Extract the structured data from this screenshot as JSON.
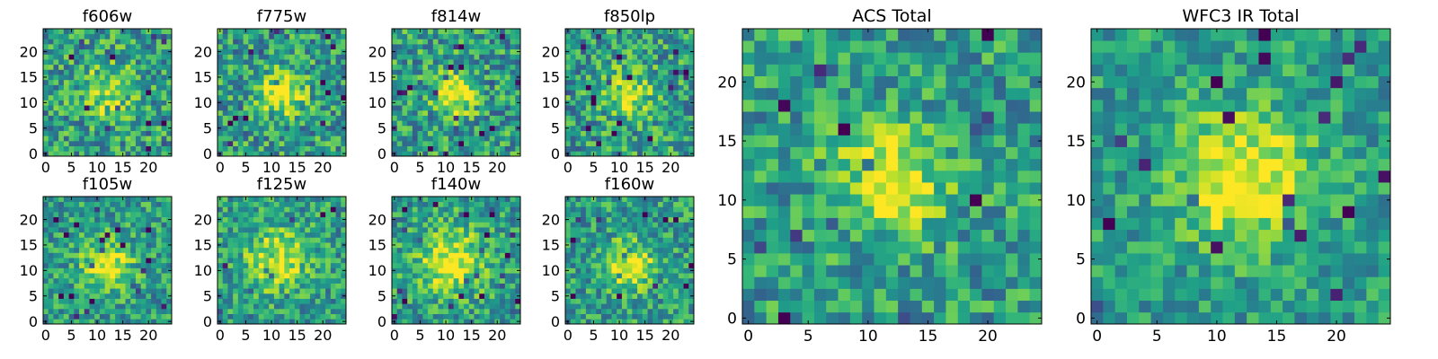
{
  "chart_data": [
    {
      "type": "heatmap",
      "title": "f606w",
      "xticks": [
        "0",
        "5",
        "10",
        "15",
        "20"
      ],
      "yticks": [
        "0",
        "5",
        "10",
        "15",
        "20"
      ],
      "xlim": [
        -0.5,
        24.5
      ],
      "ylim": [
        -0.5,
        24.5
      ],
      "grid_size": 25,
      "colormap": "viridis",
      "peak": {
        "x": 12,
        "y": 12,
        "sigma": 4.0,
        "amplitude": 0.28
      },
      "noise": 0.35,
      "seed": 11
    },
    {
      "type": "heatmap",
      "title": "f775w",
      "xticks": [
        "0",
        "5",
        "10",
        "15",
        "20"
      ],
      "yticks": [
        "0",
        "5",
        "10",
        "15",
        "20"
      ],
      "xlim": [
        -0.5,
        24.5
      ],
      "ylim": [
        -0.5,
        24.5
      ],
      "grid_size": 25,
      "colormap": "viridis",
      "peak": {
        "x": 12,
        "y": 12,
        "sigma": 2.8,
        "amplitude": 0.55
      },
      "noise": 0.35,
      "seed": 23
    },
    {
      "type": "heatmap",
      "title": "f814w",
      "xticks": [
        "0",
        "5",
        "10",
        "15",
        "20"
      ],
      "yticks": [
        "0",
        "5",
        "10",
        "15",
        "20"
      ],
      "xlim": [
        -0.5,
        24.5
      ],
      "ylim": [
        -0.5,
        24.5
      ],
      "grid_size": 25,
      "colormap": "viridis",
      "peak": {
        "x": 12,
        "y": 12,
        "sigma": 2.8,
        "amplitude": 0.55
      },
      "noise": 0.35,
      "seed": 37
    },
    {
      "type": "heatmap",
      "title": "f850lp",
      "xticks": [
        "0",
        "5",
        "10",
        "15",
        "20"
      ],
      "yticks": [
        "0",
        "5",
        "10",
        "15",
        "20"
      ],
      "xlim": [
        -0.5,
        24.5
      ],
      "ylim": [
        -0.5,
        24.5
      ],
      "grid_size": 25,
      "colormap": "viridis",
      "peak": {
        "x": 12,
        "y": 12,
        "sigma": 3.5,
        "amplitude": 0.3
      },
      "noise": 0.35,
      "seed": 41
    },
    {
      "type": "heatmap",
      "title": "f105w",
      "xticks": [
        "0",
        "5",
        "10",
        "15",
        "20"
      ],
      "yticks": [
        "0",
        "5",
        "10",
        "15",
        "20"
      ],
      "xlim": [
        -0.5,
        24.5
      ],
      "ylim": [
        -0.5,
        24.5
      ],
      "grid_size": 25,
      "colormap": "viridis",
      "peak": {
        "x": 12,
        "y": 11,
        "sigma": 3.2,
        "amplitude": 0.5
      },
      "noise": 0.3,
      "seed": 53
    },
    {
      "type": "heatmap",
      "title": "f125w",
      "xticks": [
        "0",
        "5",
        "10",
        "15",
        "20"
      ],
      "yticks": [
        "0",
        "5",
        "10",
        "15",
        "20"
      ],
      "xlim": [
        -0.5,
        24.5
      ],
      "ylim": [
        -0.5,
        24.5
      ],
      "grid_size": 25,
      "colormap": "viridis",
      "peak": {
        "x": 11,
        "y": 12,
        "sigma": 4.0,
        "amplitude": 0.45
      },
      "noise": 0.3,
      "seed": 67
    },
    {
      "type": "heatmap",
      "title": "f140w",
      "xticks": [
        "0",
        "5",
        "10",
        "15",
        "20"
      ],
      "yticks": [
        "0",
        "5",
        "10",
        "15",
        "20"
      ],
      "xlim": [
        -0.5,
        24.5
      ],
      "ylim": [
        -0.5,
        24.5
      ],
      "grid_size": 25,
      "colormap": "viridis",
      "peak": {
        "x": 11,
        "y": 12,
        "sigma": 4.5,
        "amplitude": 0.45
      },
      "noise": 0.3,
      "seed": 79
    },
    {
      "type": "heatmap",
      "title": "f160w",
      "xticks": [
        "0",
        "5",
        "10",
        "15",
        "20"
      ],
      "yticks": [
        "0",
        "5",
        "10",
        "15",
        "20"
      ],
      "xlim": [
        -0.5,
        24.5
      ],
      "ylim": [
        -0.5,
        24.5
      ],
      "grid_size": 25,
      "colormap": "viridis",
      "peak": {
        "x": 12,
        "y": 11,
        "sigma": 3.0,
        "amplitude": 0.55
      },
      "noise": 0.3,
      "seed": 83
    },
    {
      "type": "heatmap",
      "title": "ACS Total",
      "xticks": [
        "0",
        "5",
        "10",
        "15",
        "20"
      ],
      "yticks": [
        "0",
        "5",
        "10",
        "15",
        "20"
      ],
      "xlim": [
        -0.5,
        24.5
      ],
      "ylim": [
        -0.5,
        24.5
      ],
      "grid_size": 25,
      "colormap": "viridis",
      "peak": {
        "x": 12,
        "y": 12,
        "sigma": 3.2,
        "amplitude": 0.45
      },
      "noise": 0.3,
      "seed": 97
    },
    {
      "type": "heatmap",
      "title": "WFC3 IR Total",
      "xticks": [
        "0",
        "5",
        "10",
        "15",
        "20"
      ],
      "yticks": [
        "0",
        "5",
        "10",
        "15",
        "20"
      ],
      "xlim": [
        -0.5,
        24.5
      ],
      "ylim": [
        -0.5,
        24.5
      ],
      "grid_size": 25,
      "colormap": "viridis",
      "peak": {
        "x": 12,
        "y": 12,
        "sigma": 3.8,
        "amplitude": 0.5
      },
      "noise": 0.25,
      "seed": 101
    }
  ],
  "colors": {
    "viridis": [
      "#440154",
      "#482878",
      "#3e4989",
      "#31688e",
      "#26828e",
      "#1f9e89",
      "#35b779",
      "#6ece58",
      "#b5de2b",
      "#fde725"
    ],
    "frame": "#000000"
  }
}
